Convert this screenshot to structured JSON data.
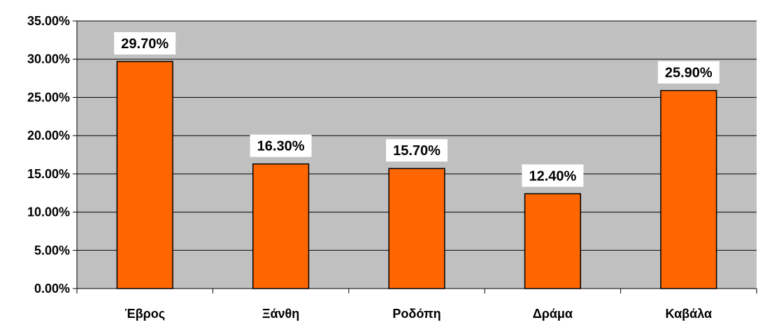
{
  "chart_data": {
    "type": "bar",
    "title": "",
    "xlabel": "",
    "ylabel": "",
    "categories": [
      "Έβρος",
      "Ξάνθη",
      "Ροδόπη",
      "Δράμα",
      "Καβάλα"
    ],
    "values": [
      29.7,
      16.3,
      15.7,
      12.4,
      25.9
    ],
    "data_labels": [
      "29.70%",
      "16.30%",
      "15.70%",
      "12.40%",
      "25.90%"
    ],
    "ylim": [
      0,
      35
    ],
    "y_ticks": [
      0,
      5,
      10,
      15,
      20,
      25,
      30,
      35
    ],
    "y_tick_labels": [
      "0.00%",
      "5.00%",
      "10.00%",
      "15.00%",
      "20.00%",
      "25.00%",
      "30.00%",
      "35.00%"
    ],
    "grid": true,
    "legend": "none"
  },
  "colors": {
    "bar_fill": "#FF6600",
    "bar_stroke": "#000000",
    "plot_background": "#C0C0C0",
    "gridline": "#000000",
    "page_background": "#FFFFFF"
  }
}
